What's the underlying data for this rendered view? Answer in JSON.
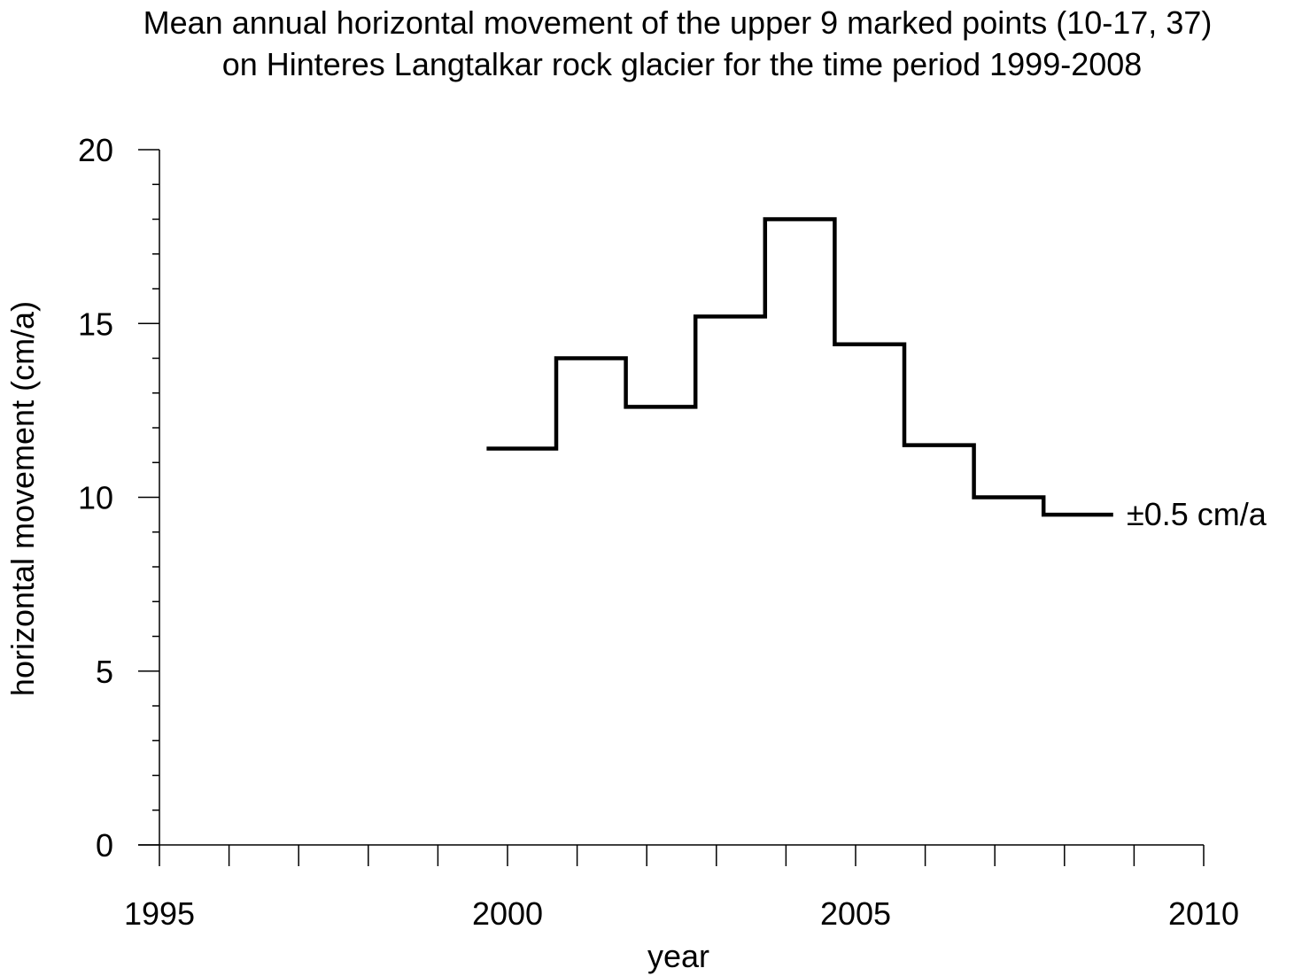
{
  "chart_data": {
    "type": "line",
    "step": true,
    "title_lines": [
      "Mean annual horizontal movement of the upper 9 marked points (10-17, 37)",
      "on Hinteres Langtalkar rock glacier for the time period 1999-2008"
    ],
    "xlabel": "year",
    "ylabel": "horizontal movement (cm/a)",
    "xlim": [
      1995,
      2010
    ],
    "ylim": [
      0,
      20
    ],
    "x_ticks": [
      1995,
      2000,
      2005,
      2010
    ],
    "x_minor_step": 1,
    "y_ticks": [
      0,
      5,
      10,
      15,
      20
    ],
    "y_minor_step": 1,
    "grid": false,
    "series": [
      {
        "color": "#000000",
        "segments": [
          {
            "x_start": 1999.7,
            "x_end": 2000.7,
            "value": 11.4
          },
          {
            "x_start": 2000.7,
            "x_end": 2001.7,
            "value": 14.0
          },
          {
            "x_start": 2001.7,
            "x_end": 2002.7,
            "value": 12.6
          },
          {
            "x_start": 2002.7,
            "x_end": 2003.7,
            "value": 15.2
          },
          {
            "x_start": 2003.7,
            "x_end": 2004.7,
            "value": 18.0
          },
          {
            "x_start": 2004.7,
            "x_end": 2005.7,
            "value": 14.4
          },
          {
            "x_start": 2005.7,
            "x_end": 2006.7,
            "value": 11.5
          },
          {
            "x_start": 2006.7,
            "x_end": 2007.7,
            "value": 10.0
          },
          {
            "x_start": 2007.7,
            "x_end": 2008.7,
            "value": 9.5
          }
        ]
      }
    ],
    "annotation": "±0.5 cm/a"
  }
}
